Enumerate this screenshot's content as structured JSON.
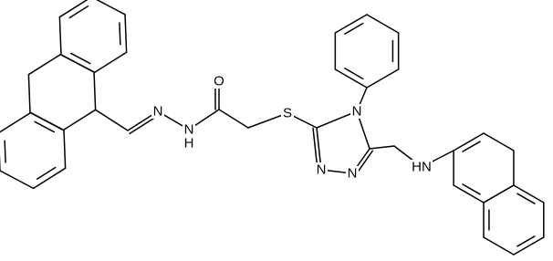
{
  "atom_labels": [
    "N",
    "N",
    "H",
    "O",
    "S",
    "N",
    "N",
    "N",
    "HN"
  ]
}
